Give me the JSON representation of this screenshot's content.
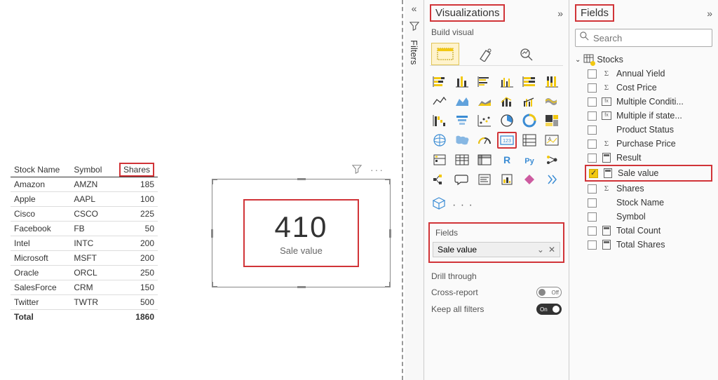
{
  "canvas": {
    "table": {
      "columns": [
        "Stock Name",
        "Symbol",
        "Shares"
      ],
      "highlighted_column": "Shares",
      "rows": [
        [
          "Amazon",
          "AMZN",
          "185"
        ],
        [
          "Apple",
          "AAPL",
          "100"
        ],
        [
          "Cisco",
          "CSCO",
          "225"
        ],
        [
          "Facebook",
          "FB",
          "50"
        ],
        [
          "Intel",
          "INTC",
          "200"
        ],
        [
          "Microsoft",
          "MSFT",
          "200"
        ],
        [
          "Oracle",
          "ORCL",
          "250"
        ],
        [
          "SalesForce",
          "CRM",
          "150"
        ],
        [
          "Twitter",
          "TWTR",
          "500"
        ]
      ],
      "total_label": "Total",
      "total_value": "1860"
    },
    "card": {
      "value": "410",
      "label": "Sale value",
      "highlight_color": "#d13438"
    }
  },
  "filters_panel": {
    "collapse_glyph": "«",
    "label": "Filters"
  },
  "viz_panel": {
    "title": "Visualizations",
    "expand_glyph": "»",
    "subhead": "Build visual",
    "highlight_color": "#d13438",
    "selected_viz": "card-123",
    "more_glyph": "· · ·",
    "fields_well": {
      "label": "Fields",
      "item": "Sale value"
    },
    "drill": {
      "title": "Drill through",
      "cross_report": {
        "label": "Cross-report",
        "state": "Off"
      },
      "keep_filters": {
        "label": "Keep all filters",
        "state": "On"
      }
    }
  },
  "fields_panel": {
    "title": "Fields",
    "expand_glyph": "»",
    "search_placeholder": "Search",
    "table_name": "Stocks",
    "fields": [
      {
        "name": "Annual Yield",
        "icon": "sigma",
        "checked": false
      },
      {
        "name": "Cost Price",
        "icon": "sigma",
        "checked": false
      },
      {
        "name": "Multiple Conditi...",
        "icon": "fx",
        "checked": false
      },
      {
        "name": "Multiple if state...",
        "icon": "fx",
        "checked": false
      },
      {
        "name": "Product Status",
        "icon": "",
        "checked": false
      },
      {
        "name": "Purchase Price",
        "icon": "sigma",
        "checked": false
      },
      {
        "name": "Result",
        "icon": "calc",
        "checked": false
      },
      {
        "name": "Sale value",
        "icon": "calc",
        "checked": true,
        "highlighted": true
      },
      {
        "name": "Shares",
        "icon": "sigma",
        "checked": false
      },
      {
        "name": "Stock Name",
        "icon": "",
        "checked": false
      },
      {
        "name": "Symbol",
        "icon": "",
        "checked": false
      },
      {
        "name": "Total Count",
        "icon": "calc",
        "checked": false
      },
      {
        "name": "Total Shares",
        "icon": "calc",
        "checked": false
      }
    ]
  },
  "colors": {
    "highlight": "#d13438",
    "accent_yellow": "#f2c811",
    "viz_stroke": "#3a3a3a",
    "viz_accent": "#f2c811",
    "viz_blue": "#3b8cd4"
  }
}
